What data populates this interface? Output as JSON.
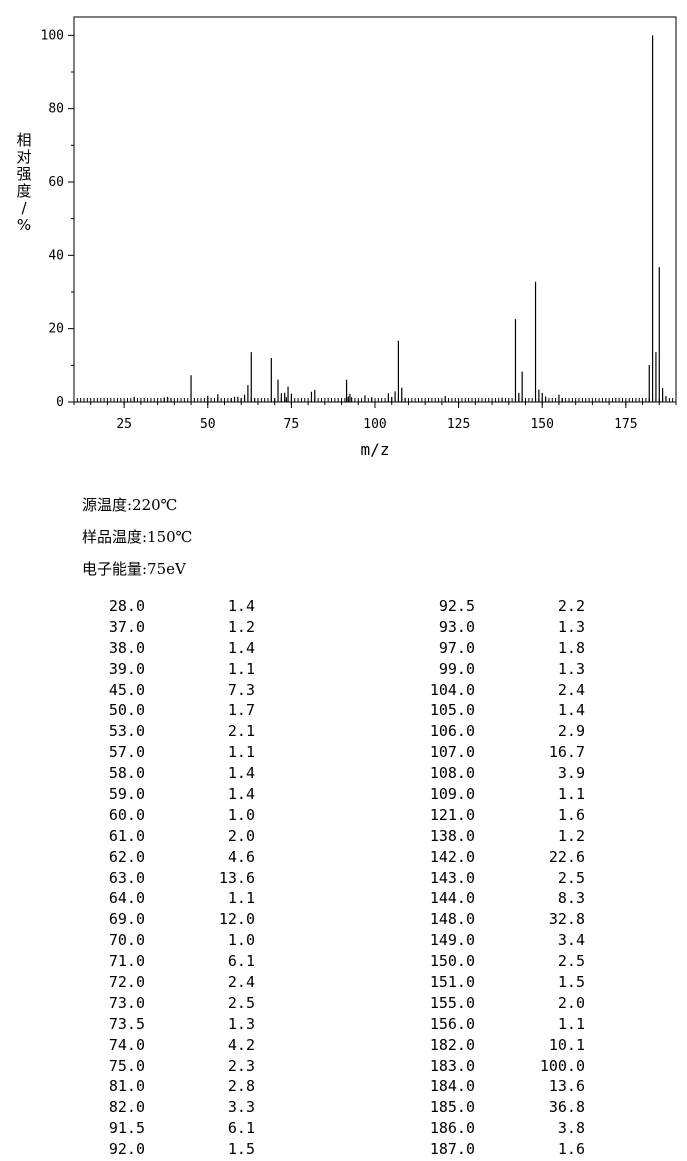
{
  "chart_data": {
    "type": "bar",
    "xlabel": "m/z",
    "ylabel": "相对强度/%",
    "xlim": [
      10,
      190
    ],
    "ylim": [
      0,
      105
    ],
    "xticks": [
      "25",
      "50",
      "75",
      "100",
      "125",
      "150",
      "175"
    ],
    "yticks": [
      "0",
      "20",
      "40",
      "60",
      "80",
      "100"
    ],
    "peaks": [
      {
        "x": 28.0,
        "y": 1.4
      },
      {
        "x": 37.0,
        "y": 1.2
      },
      {
        "x": 38.0,
        "y": 1.4
      },
      {
        "x": 39.0,
        "y": 1.1
      },
      {
        "x": 45.0,
        "y": 7.3
      },
      {
        "x": 50.0,
        "y": 1.7
      },
      {
        "x": 53.0,
        "y": 2.1
      },
      {
        "x": 57.0,
        "y": 1.1
      },
      {
        "x": 58.0,
        "y": 1.4
      },
      {
        "x": 59.0,
        "y": 1.4
      },
      {
        "x": 60.0,
        "y": 1.0
      },
      {
        "x": 61.0,
        "y": 2.0
      },
      {
        "x": 62.0,
        "y": 4.6
      },
      {
        "x": 63.0,
        "y": 13.6
      },
      {
        "x": 64.0,
        "y": 1.1
      },
      {
        "x": 69.0,
        "y": 12.0
      },
      {
        "x": 70.0,
        "y": 1.0
      },
      {
        "x": 71.0,
        "y": 6.1
      },
      {
        "x": 72.0,
        "y": 2.4
      },
      {
        "x": 73.0,
        "y": 2.5
      },
      {
        "x": 73.5,
        "y": 1.3
      },
      {
        "x": 74.0,
        "y": 4.2
      },
      {
        "x": 75.0,
        "y": 2.3
      },
      {
        "x": 81.0,
        "y": 2.8
      },
      {
        "x": 82.0,
        "y": 3.3
      },
      {
        "x": 91.5,
        "y": 6.1
      },
      {
        "x": 92.0,
        "y": 1.5
      },
      {
        "x": 92.5,
        "y": 2.2
      },
      {
        "x": 93.0,
        "y": 1.3
      },
      {
        "x": 97.0,
        "y": 1.8
      },
      {
        "x": 99.0,
        "y": 1.3
      },
      {
        "x": 104.0,
        "y": 2.4
      },
      {
        "x": 105.0,
        "y": 1.4
      },
      {
        "x": 106.0,
        "y": 2.9
      },
      {
        "x": 107.0,
        "y": 16.7
      },
      {
        "x": 108.0,
        "y": 3.9
      },
      {
        "x": 109.0,
        "y": 1.1
      },
      {
        "x": 121.0,
        "y": 1.6
      },
      {
        "x": 138.0,
        "y": 1.2
      },
      {
        "x": 142.0,
        "y": 22.6
      },
      {
        "x": 143.0,
        "y": 2.5
      },
      {
        "x": 144.0,
        "y": 8.3
      },
      {
        "x": 148.0,
        "y": 32.8
      },
      {
        "x": 149.0,
        "y": 3.4
      },
      {
        "x": 150.0,
        "y": 2.5
      },
      {
        "x": 151.0,
        "y": 1.5
      },
      {
        "x": 155.0,
        "y": 2.0
      },
      {
        "x": 156.0,
        "y": 1.1
      },
      {
        "x": 182.0,
        "y": 10.1
      },
      {
        "x": 183.0,
        "y": 100.0
      },
      {
        "x": 184.0,
        "y": 13.6
      },
      {
        "x": 185.0,
        "y": 36.8
      },
      {
        "x": 186.0,
        "y": 3.8
      },
      {
        "x": 187.0,
        "y": 1.6
      }
    ]
  },
  "conditions": {
    "source_temp": "源温度:220℃",
    "sample_temp": "样品温度:150℃",
    "electron_energy": "电子能量:75eV"
  },
  "peak_table": {
    "left": [
      [
        "28.0",
        "1.4"
      ],
      [
        "37.0",
        "1.2"
      ],
      [
        "38.0",
        "1.4"
      ],
      [
        "39.0",
        "1.1"
      ],
      [
        "45.0",
        "7.3"
      ],
      [
        "50.0",
        "1.7"
      ],
      [
        "53.0",
        "2.1"
      ],
      [
        "57.0",
        "1.1"
      ],
      [
        "58.0",
        "1.4"
      ],
      [
        "59.0",
        "1.4"
      ],
      [
        "60.0",
        "1.0"
      ],
      [
        "61.0",
        "2.0"
      ],
      [
        "62.0",
        "4.6"
      ],
      [
        "63.0",
        "13.6"
      ],
      [
        "64.0",
        "1.1"
      ],
      [
        "69.0",
        "12.0"
      ],
      [
        "70.0",
        "1.0"
      ],
      [
        "71.0",
        "6.1"
      ],
      [
        "72.0",
        "2.4"
      ],
      [
        "73.0",
        "2.5"
      ],
      [
        "73.5",
        "1.3"
      ],
      [
        "74.0",
        "4.2"
      ],
      [
        "75.0",
        "2.3"
      ],
      [
        "81.0",
        "2.8"
      ],
      [
        "82.0",
        "3.3"
      ],
      [
        "91.5",
        "6.1"
      ],
      [
        "92.0",
        "1.5"
      ]
    ],
    "right": [
      [
        "92.5",
        "2.2"
      ],
      [
        "93.0",
        "1.3"
      ],
      [
        "97.0",
        "1.8"
      ],
      [
        "99.0",
        "1.3"
      ],
      [
        "104.0",
        "2.4"
      ],
      [
        "105.0",
        "1.4"
      ],
      [
        "106.0",
        "2.9"
      ],
      [
        "107.0",
        "16.7"
      ],
      [
        "108.0",
        "3.9"
      ],
      [
        "109.0",
        "1.1"
      ],
      [
        "121.0",
        "1.6"
      ],
      [
        "138.0",
        "1.2"
      ],
      [
        "142.0",
        "22.6"
      ],
      [
        "143.0",
        "2.5"
      ],
      [
        "144.0",
        "8.3"
      ],
      [
        "148.0",
        "32.8"
      ],
      [
        "149.0",
        "3.4"
      ],
      [
        "150.0",
        "2.5"
      ],
      [
        "151.0",
        "1.5"
      ],
      [
        "155.0",
        "2.0"
      ],
      [
        "156.0",
        "1.1"
      ],
      [
        "182.0",
        "10.1"
      ],
      [
        "183.0",
        "100.0"
      ],
      [
        "184.0",
        "13.6"
      ],
      [
        "185.0",
        "36.8"
      ],
      [
        "186.0",
        "3.8"
      ],
      [
        "187.0",
        "1.6"
      ]
    ]
  }
}
